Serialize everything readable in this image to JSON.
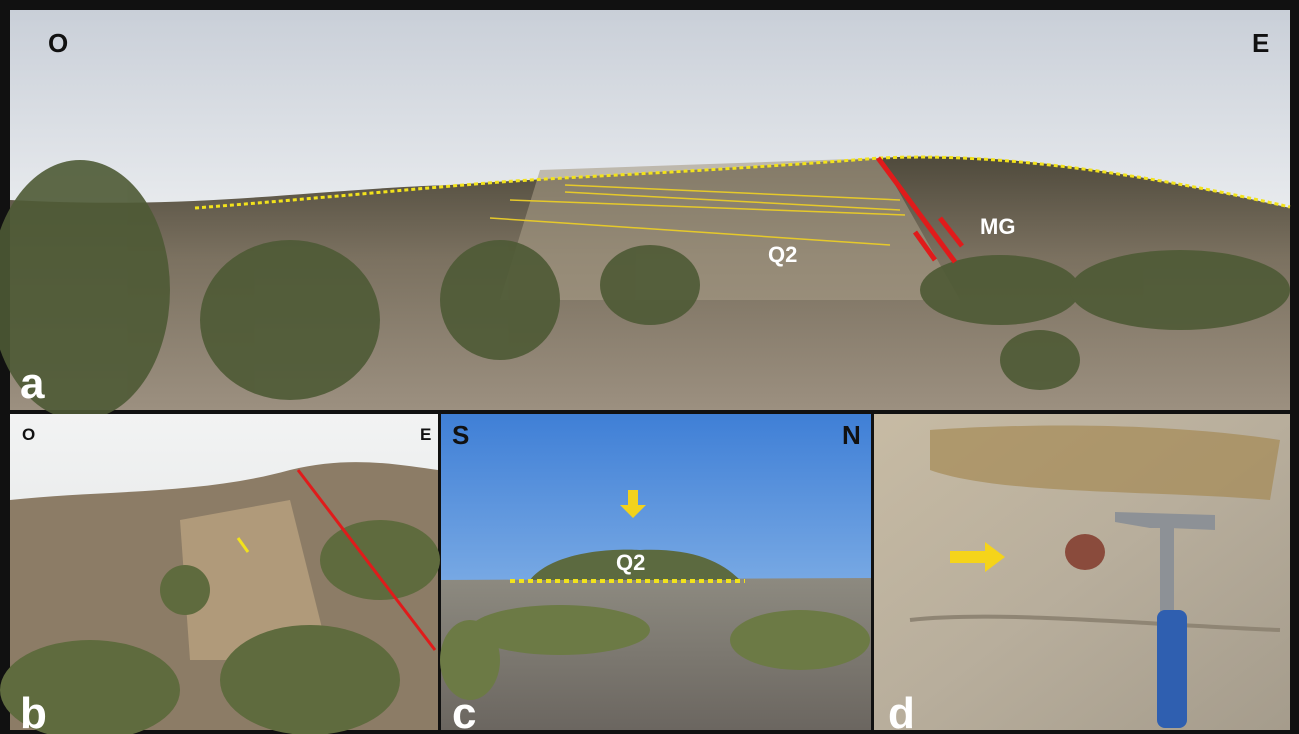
{
  "panel_a": {
    "label": "a",
    "left": "O",
    "right": "E",
    "annotations": [
      "Q2",
      "MG"
    ]
  },
  "panel_b": {
    "label": "b",
    "left": "O",
    "right": "E"
  },
  "panel_c": {
    "label": "c",
    "left": "S",
    "right": "N",
    "annotation": "Q2"
  },
  "panel_d": {
    "label": "d"
  }
}
